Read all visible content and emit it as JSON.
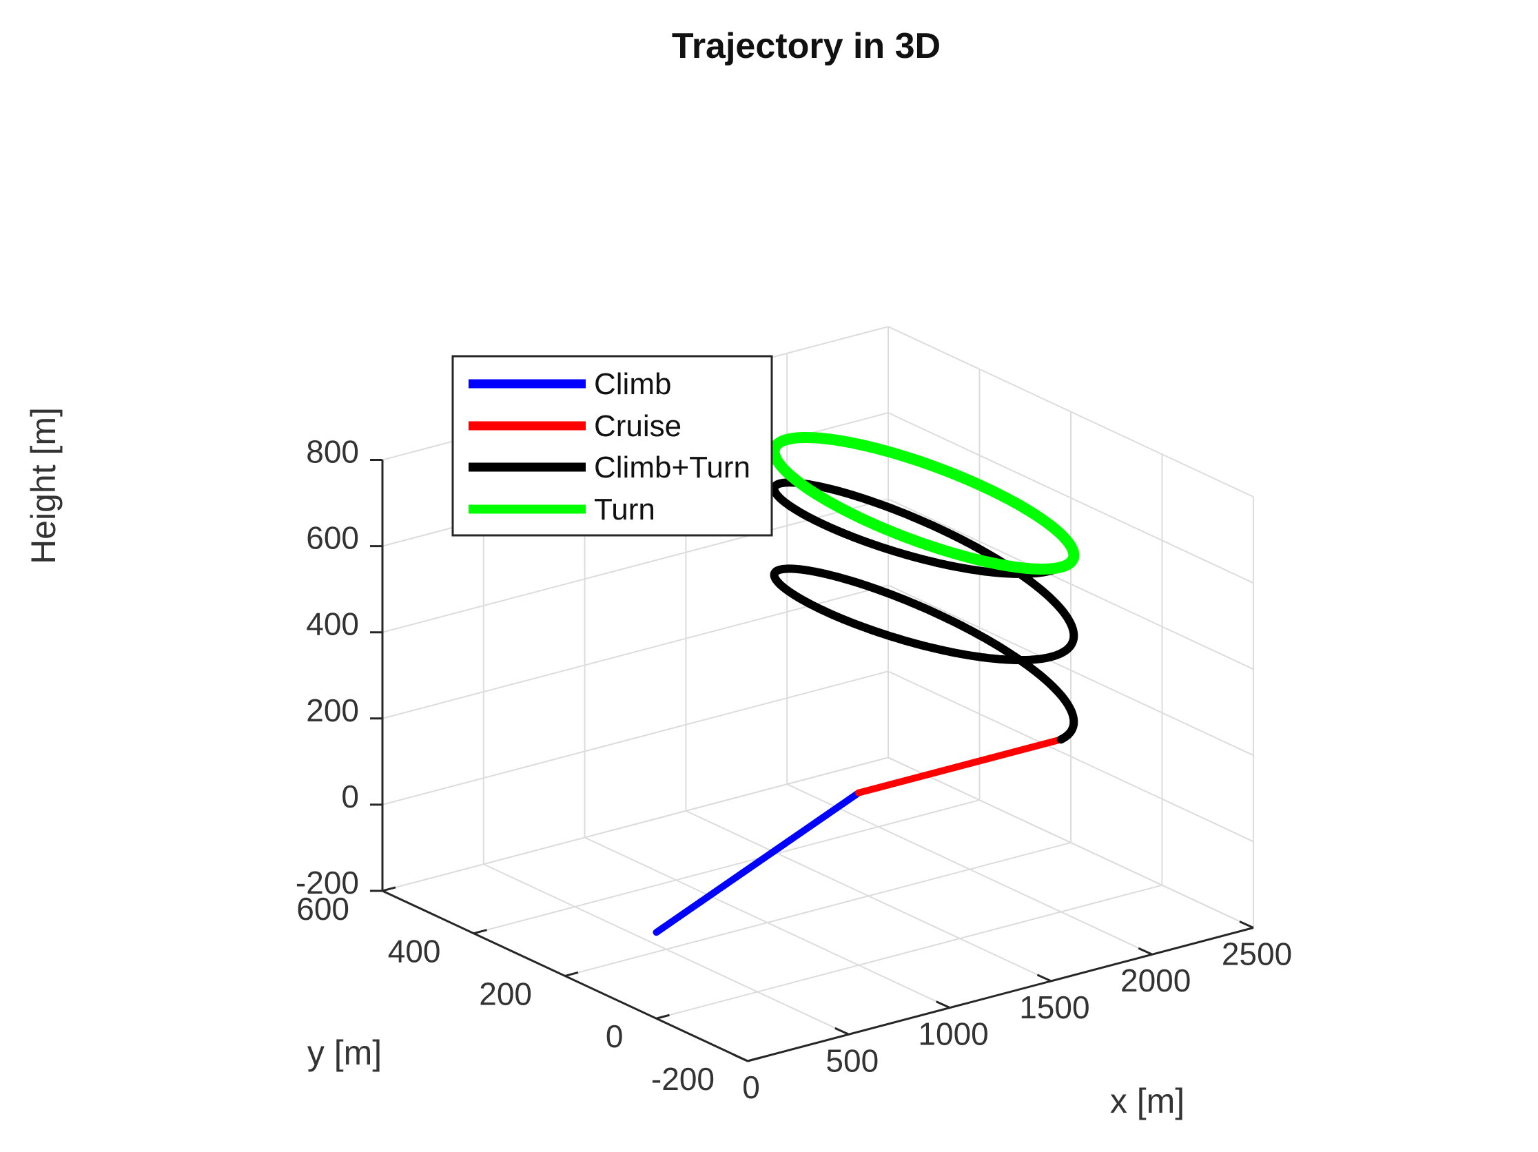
{
  "chart_data": {
    "type": "line",
    "projection": "3d",
    "title": "Trajectory in 3D",
    "xlabel": "x [m]",
    "ylabel": "y [m]",
    "zlabel": "Height [m]",
    "xlim": [
      0,
      2500
    ],
    "ylim": [
      -200,
      600
    ],
    "zlim": [
      -200,
      800
    ],
    "xticks": [
      0,
      500,
      1000,
      1500,
      2000,
      2500
    ],
    "yticks": [
      -200,
      0,
      200,
      400,
      600
    ],
    "zticks": [
      -200,
      0,
      200,
      400,
      600,
      800
    ],
    "xtick_labels": [
      "0",
      "500",
      "1000",
      "1500",
      "2000",
      "2500"
    ],
    "ytick_labels": [
      "-200",
      "0",
      "200",
      "400",
      "600"
    ],
    "ztick_labels": [
      "-200",
      "0",
      "200",
      "400",
      "600",
      "800"
    ],
    "grid": true,
    "legend_position": "upper-left",
    "series": [
      {
        "name": "Climb",
        "color": "#0000ff",
        "kind": "segment",
        "start": [
          0,
          0,
          0
        ],
        "end": [
          1000,
          0,
          200
        ]
      },
      {
        "name": "Cruise",
        "color": "#ff0000",
        "kind": "segment",
        "start": [
          1000,
          0,
          200
        ],
        "end": [
          2000,
          0,
          200
        ]
      },
      {
        "name": "Climb+Turn",
        "color": "#000000",
        "kind": "helix",
        "center": [
          2000,
          300
        ],
        "radius": 300,
        "z_start": 200,
        "z_end": 600,
        "turns": 2
      },
      {
        "name": "Turn",
        "color": "#00ff00",
        "kind": "circle",
        "center": [
          2000,
          300
        ],
        "radius": 300,
        "z": 600
      }
    ]
  }
}
